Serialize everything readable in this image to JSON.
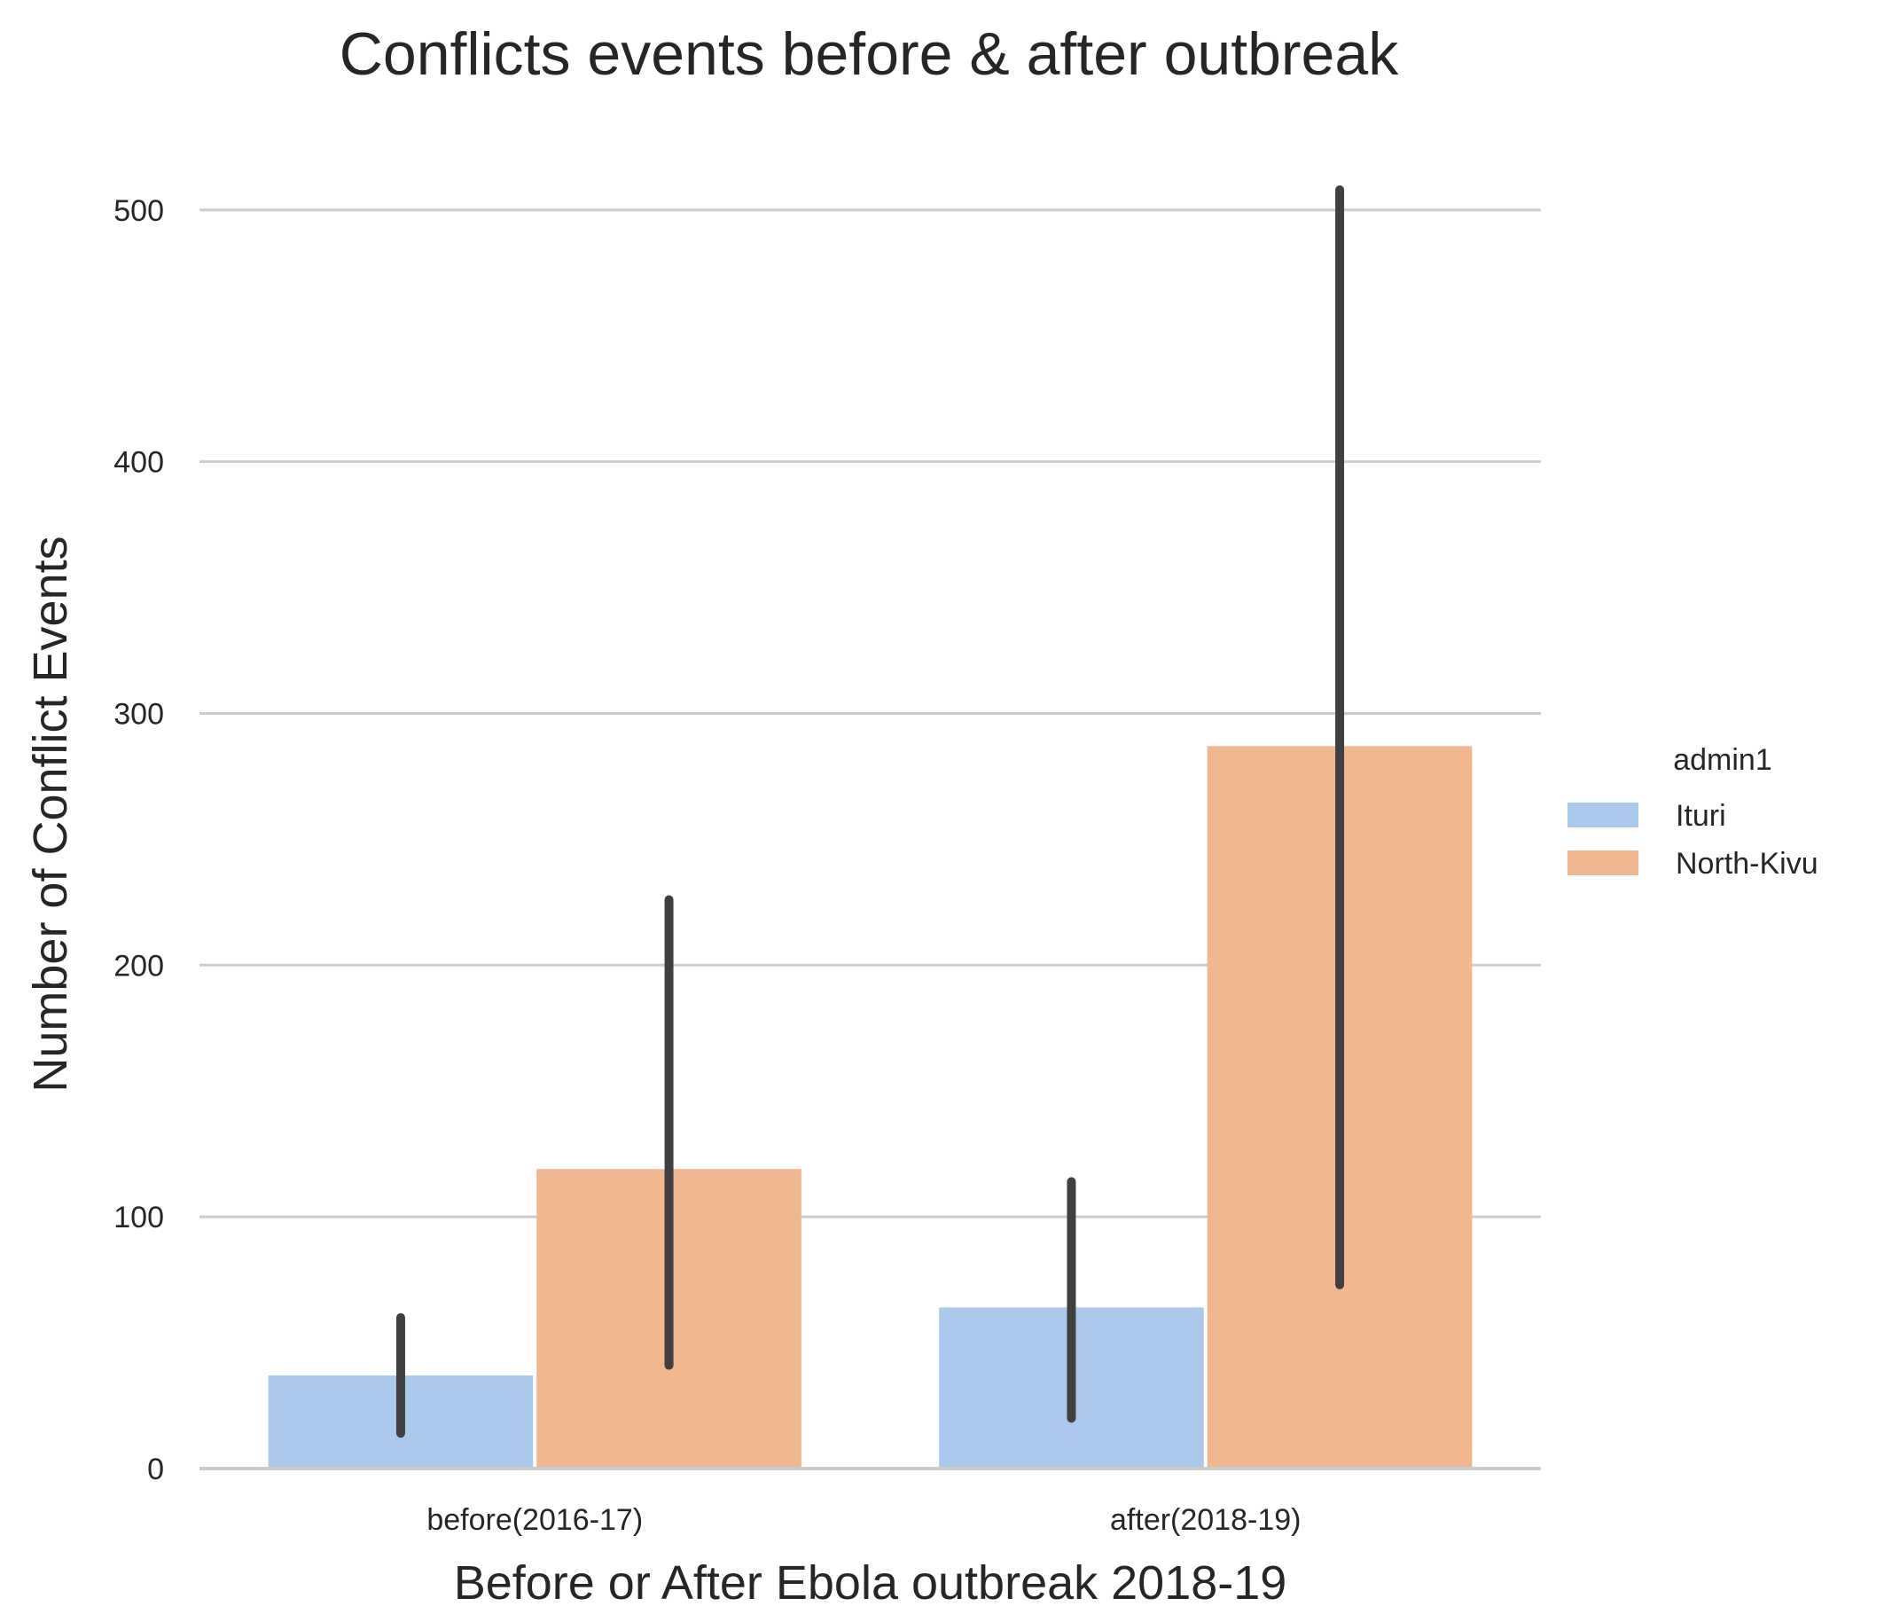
{
  "chart_data": {
    "type": "bar",
    "title": "Conflicts events before & after outbreak",
    "xlabel": "Before or After Ebola outbreak 2018-19",
    "ylabel": "Number of Conflict Events",
    "categories": [
      "before(2016-17)",
      "after(2018-19)"
    ],
    "series": [
      {
        "name": "Ituri",
        "color": "#abc9ed",
        "values": [
          37,
          64
        ],
        "ci_low": [
          14,
          20
        ],
        "ci_high": [
          60,
          114
        ]
      },
      {
        "name": "North-Kivu",
        "color": "#f0b791",
        "values": [
          119,
          287
        ],
        "ci_low": [
          41,
          73
        ],
        "ci_high": [
          226,
          508
        ]
      }
    ],
    "ylim": [
      0,
      520
    ],
    "yticks": [
      0,
      100,
      200,
      300,
      400,
      500
    ],
    "grid": "horizontal",
    "gridColor": "#cccccc",
    "errorBarColor": "#404040",
    "legend": {
      "title": "admin1",
      "placement": "right"
    }
  }
}
